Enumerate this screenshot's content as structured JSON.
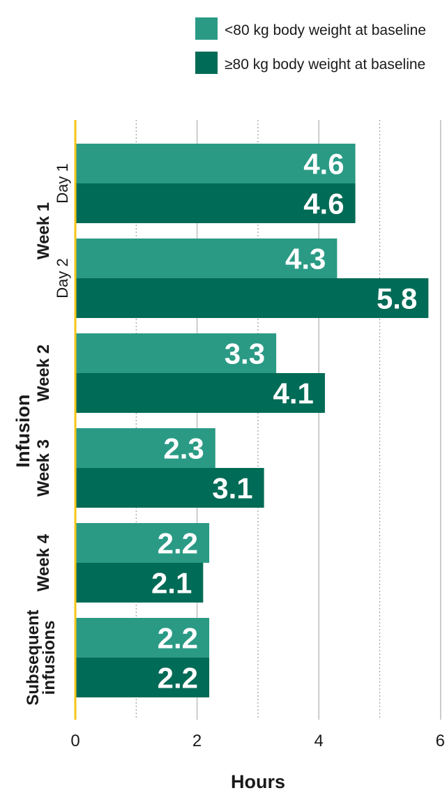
{
  "chart_data": {
    "type": "bar",
    "orientation": "horizontal",
    "xlabel": "Hours",
    "ylabel": "Infusion",
    "xlim": [
      0,
      6
    ],
    "xticks": [
      "0",
      "2",
      "4",
      "6"
    ],
    "colors": {
      "under80": "#2a9a85",
      "over80": "#006b56",
      "baseline": "#f5c518",
      "grid": "#bdbdbd"
    },
    "legend": {
      "placement": "top-right",
      "entries": [
        "<80 kg body weight at baseline",
        "≥80 kg body weight at baseline"
      ]
    },
    "groups": [
      {
        "label": "Week 1",
        "sublabel": "Day 1",
        "values": [
          4.6,
          4.6
        ],
        "labels": [
          "4.6",
          "4.6"
        ]
      },
      {
        "label": "",
        "sublabel": "Day 2",
        "values": [
          4.3,
          5.8
        ],
        "labels": [
          "4.3",
          "5.8"
        ]
      },
      {
        "label": "Week 2",
        "sublabel": "",
        "values": [
          3.3,
          4.1
        ],
        "labels": [
          "3.3",
          "4.1"
        ]
      },
      {
        "label": "Week 3",
        "sublabel": "",
        "values": [
          2.3,
          3.1
        ],
        "labels": [
          "2.3",
          "3.1"
        ]
      },
      {
        "label": "Week 4",
        "sublabel": "",
        "values": [
          2.2,
          2.1
        ],
        "labels": [
          "2.2",
          "2.1"
        ]
      },
      {
        "label": "Subsequent infusions",
        "sublabel": "",
        "values": [
          2.2,
          2.2
        ],
        "labels": [
          "2.2",
          "2.2"
        ]
      }
    ],
    "series": [
      {
        "name": "<80 kg body weight at baseline",
        "values": [
          4.6,
          4.3,
          3.3,
          2.3,
          2.2,
          2.2
        ]
      },
      {
        "name": "≥80 kg body weight at baseline",
        "values": [
          4.6,
          5.8,
          4.1,
          3.1,
          2.1,
          2.2
        ]
      }
    ]
  }
}
